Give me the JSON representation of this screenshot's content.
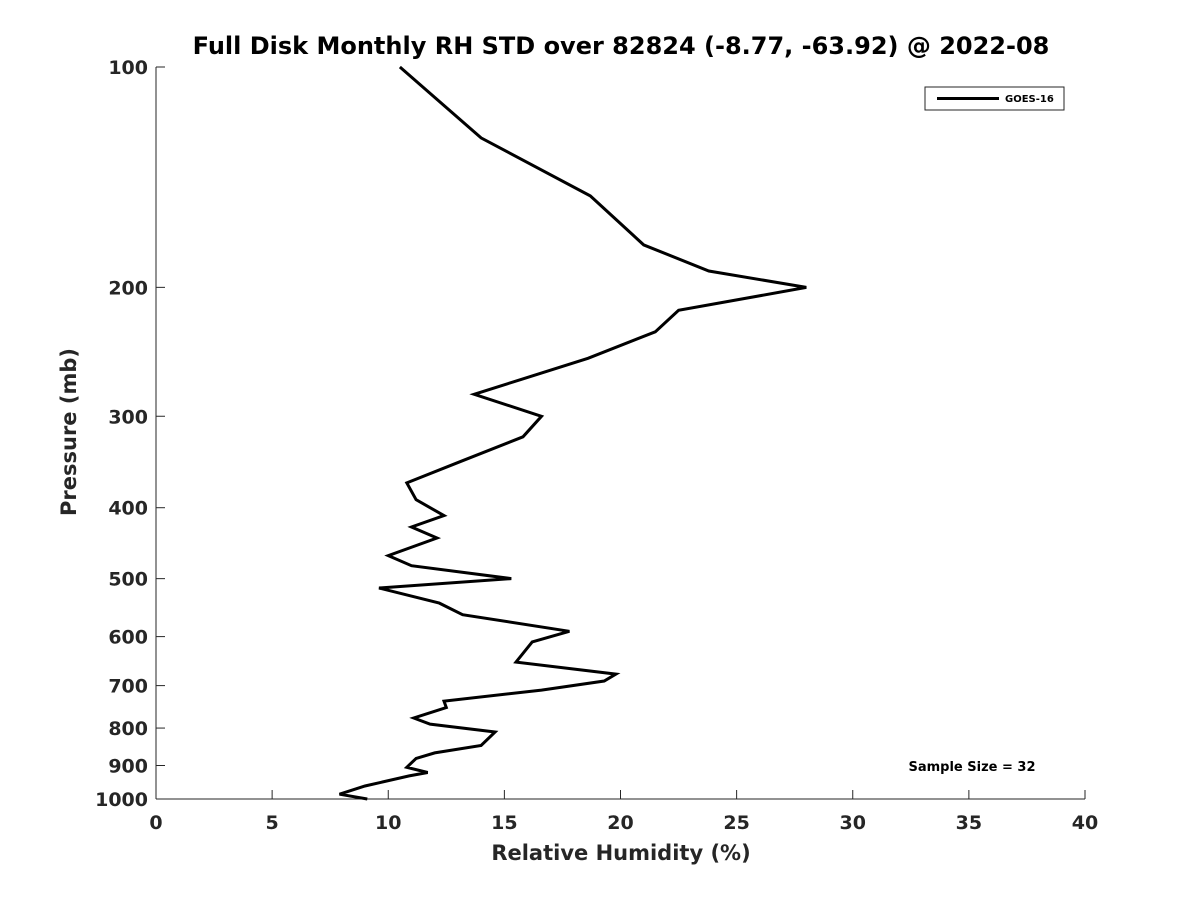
{
  "chart_data": {
    "type": "line",
    "title": "Full Disk Monthly RH STD over 82824 (-8.77, -63.92) @ 2022-08",
    "xlabel": "Relative Humidity (%)",
    "ylabel": "Pressure (mb)",
    "xlim": [
      0,
      40
    ],
    "ylim": [
      100,
      1000
    ],
    "yscale": "log",
    "y_reversed": true,
    "x_ticks": [
      0,
      5,
      10,
      15,
      20,
      25,
      30,
      35,
      40
    ],
    "y_ticks": [
      100,
      200,
      300,
      400,
      500,
      600,
      700,
      800,
      900,
      1000
    ],
    "grid": false,
    "legend": {
      "position": "top-right",
      "entries": [
        "GOES-16"
      ]
    },
    "annotation": "Sample Size = 32",
    "series": [
      {
        "name": "GOES-16",
        "color": "#000000",
        "points": [
          [
            10.5,
            100
          ],
          [
            14.0,
            125
          ],
          [
            18.7,
            150
          ],
          [
            21.0,
            175
          ],
          [
            23.8,
            190
          ],
          [
            28.0,
            200
          ],
          [
            22.5,
            215
          ],
          [
            21.5,
            230
          ],
          [
            18.6,
            250
          ],
          [
            13.7,
            280
          ],
          [
            16.6,
            300
          ],
          [
            15.8,
            320
          ],
          [
            13.2,
            345
          ],
          [
            10.8,
            370
          ],
          [
            11.2,
            390
          ],
          [
            12.4,
            410
          ],
          [
            11.0,
            425
          ],
          [
            12.1,
            440
          ],
          [
            10.0,
            465
          ],
          [
            11.0,
            480
          ],
          [
            15.3,
            500
          ],
          [
            9.6,
            515
          ],
          [
            12.2,
            540
          ],
          [
            13.2,
            560
          ],
          [
            17.8,
            590
          ],
          [
            16.2,
            610
          ],
          [
            15.5,
            650
          ],
          [
            19.8,
            675
          ],
          [
            19.3,
            690
          ],
          [
            16.6,
            710
          ],
          [
            12.4,
            735
          ],
          [
            12.5,
            750
          ],
          [
            11.1,
            775
          ],
          [
            11.8,
            790
          ],
          [
            14.6,
            810
          ],
          [
            14.0,
            845
          ],
          [
            12.0,
            865
          ],
          [
            11.2,
            880
          ],
          [
            10.8,
            905
          ],
          [
            11.7,
            920
          ],
          [
            10.9,
            930
          ],
          [
            9.0,
            960
          ],
          [
            7.9,
            985
          ],
          [
            9.1,
            1000
          ]
        ]
      }
    ]
  }
}
